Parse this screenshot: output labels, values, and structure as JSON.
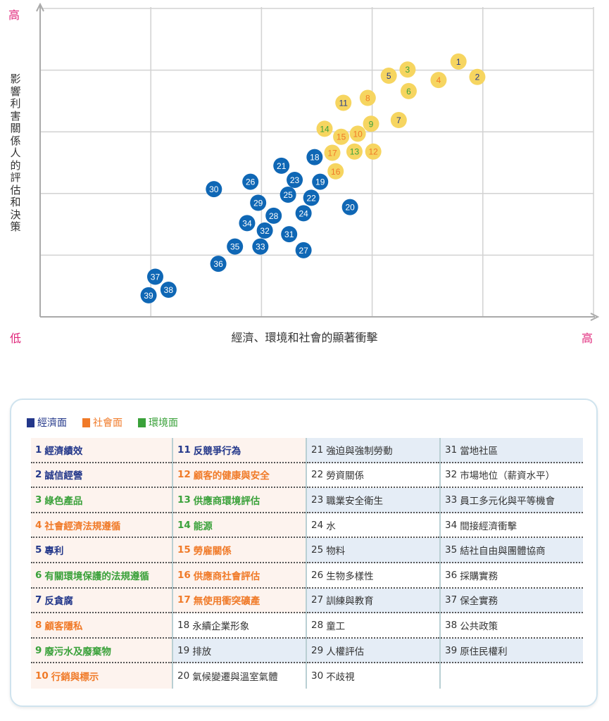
{
  "chart_data": {
    "type": "scatter",
    "title": "",
    "xlabel": "經濟、環境和社會的顯著衝擊",
    "ylabel": "影響利害關係人的評估和決策",
    "axis_ends": {
      "y_high": "高",
      "x_low": "低",
      "x_high": "高"
    },
    "xlim": [
      0,
      5
    ],
    "ylim": [
      0,
      5
    ],
    "grid": true,
    "categories": {
      "economic": {
        "label": "經濟面",
        "color": "#23378a"
      },
      "social": {
        "label": "社會面",
        "color": "#f07a28"
      },
      "environmental": {
        "label": "環境面",
        "color": "#3aa13a"
      }
    },
    "colors": {
      "high_marker": "#f6d560",
      "low_marker": "#0f67b5",
      "low_text": "#ffffff",
      "other_text": "#333333"
    },
    "points": [
      {
        "id": 1,
        "label": "經濟績效",
        "cat": "economic",
        "tier": "high",
        "x": 3.78,
        "y": 4.14
      },
      {
        "id": 2,
        "label": "誠信經營",
        "cat": "economic",
        "tier": "high",
        "x": 3.95,
        "y": 3.89
      },
      {
        "id": 3,
        "label": "綠色產品",
        "cat": "environmental",
        "tier": "high",
        "x": 3.32,
        "y": 4.01
      },
      {
        "id": 4,
        "label": "社會經濟法規遵循",
        "cat": "social",
        "tier": "high",
        "x": 3.6,
        "y": 3.84
      },
      {
        "id": 5,
        "label": "專利",
        "cat": "economic",
        "tier": "high",
        "x": 3.15,
        "y": 3.91
      },
      {
        "id": 6,
        "label": "有關環境保護的法規遵循",
        "cat": "environmental",
        "tier": "high",
        "x": 3.33,
        "y": 3.66
      },
      {
        "id": 7,
        "label": "反貪腐",
        "cat": "economic",
        "tier": "high",
        "x": 3.24,
        "y": 3.19
      },
      {
        "id": 8,
        "label": "顧客隱私",
        "cat": "social",
        "tier": "high",
        "x": 2.96,
        "y": 3.55
      },
      {
        "id": 9,
        "label": "廢污水及廢棄物",
        "cat": "environmental",
        "tier": "high",
        "x": 2.99,
        "y": 3.13
      },
      {
        "id": 10,
        "label": "行銷與標示",
        "cat": "social",
        "tier": "high",
        "x": 2.87,
        "y": 2.97
      },
      {
        "id": 11,
        "label": "反競爭行為",
        "cat": "economic",
        "tier": "high",
        "x": 2.74,
        "y": 3.47
      },
      {
        "id": 12,
        "label": "顧客的健康與安全",
        "cat": "social",
        "tier": "high",
        "x": 3.01,
        "y": 2.68
      },
      {
        "id": 13,
        "label": "供應商環境評估",
        "cat": "environmental",
        "tier": "high",
        "x": 2.84,
        "y": 2.68
      },
      {
        "id": 14,
        "label": "能源",
        "cat": "environmental",
        "tier": "high",
        "x": 2.57,
        "y": 3.05
      },
      {
        "id": 15,
        "label": "勞雇關係",
        "cat": "social",
        "tier": "high",
        "x": 2.72,
        "y": 2.92
      },
      {
        "id": 16,
        "label": "供應商社會評估",
        "cat": "social",
        "tier": "high",
        "x": 2.67,
        "y": 2.36
      },
      {
        "id": 17,
        "label": "無使用衝突礦產",
        "cat": "social",
        "tier": "high",
        "x": 2.64,
        "y": 2.66
      },
      {
        "id": 18,
        "label": "永續企業形象",
        "cat": "other",
        "tier": "low",
        "x": 2.48,
        "y": 2.59
      },
      {
        "id": 19,
        "label": "排放",
        "cat": "other",
        "tier": "low",
        "x": 2.53,
        "y": 2.19
      },
      {
        "id": 20,
        "label": "氣候變遷與溫室氣體",
        "cat": "other",
        "tier": "low",
        "x": 2.8,
        "y": 1.78
      },
      {
        "id": 21,
        "label": "強迫與強制勞動",
        "cat": "other",
        "tier": "low",
        "x": 2.18,
        "y": 2.45
      },
      {
        "id": 22,
        "label": "勞資關係",
        "cat": "other",
        "tier": "low",
        "x": 2.45,
        "y": 1.93
      },
      {
        "id": 23,
        "label": "職業安全衛生",
        "cat": "other",
        "tier": "low",
        "x": 2.3,
        "y": 2.22
      },
      {
        "id": 24,
        "label": "水",
        "cat": "other",
        "tier": "low",
        "x": 2.38,
        "y": 1.68
      },
      {
        "id": 25,
        "label": "物料",
        "cat": "other",
        "tier": "low",
        "x": 2.24,
        "y": 1.98
      },
      {
        "id": 26,
        "label": "生物多樣性",
        "cat": "other",
        "tier": "low",
        "x": 1.9,
        "y": 2.19
      },
      {
        "id": 27,
        "label": "訓練與教育",
        "cat": "other",
        "tier": "low",
        "x": 2.38,
        "y": 1.08
      },
      {
        "id": 28,
        "label": "童工",
        "cat": "other",
        "tier": "low",
        "x": 2.11,
        "y": 1.64
      },
      {
        "id": 29,
        "label": "人權評估",
        "cat": "other",
        "tier": "low",
        "x": 1.97,
        "y": 1.85
      },
      {
        "id": 30,
        "label": "不歧視",
        "cat": "other",
        "tier": "low",
        "x": 1.57,
        "y": 2.07
      },
      {
        "id": 31,
        "label": "當地社區",
        "cat": "other",
        "tier": "low",
        "x": 2.25,
        "y": 1.34
      },
      {
        "id": 32,
        "label": "市場地位（薪資水平）",
        "cat": "other",
        "tier": "low",
        "x": 2.03,
        "y": 1.4
      },
      {
        "id": 33,
        "label": "員工多元化與平等機會",
        "cat": "other",
        "tier": "low",
        "x": 1.99,
        "y": 1.14
      },
      {
        "id": 34,
        "label": "間接經濟衝擊",
        "cat": "other",
        "tier": "low",
        "x": 1.87,
        "y": 1.52
      },
      {
        "id": 35,
        "label": "結社自由與團體協商",
        "cat": "other",
        "tier": "low",
        "x": 1.76,
        "y": 1.14
      },
      {
        "id": 36,
        "label": "採購實務",
        "cat": "other",
        "tier": "low",
        "x": 1.61,
        "y": 0.86
      },
      {
        "id": 37,
        "label": "保全實務",
        "cat": "other",
        "tier": "low",
        "x": 1.04,
        "y": 0.65
      },
      {
        "id": 38,
        "label": "公共政策",
        "cat": "other",
        "tier": "low",
        "x": 1.16,
        "y": 0.44
      },
      {
        "id": 39,
        "label": "原住民權利",
        "cat": "other",
        "tier": "low",
        "x": 0.98,
        "y": 0.35
      }
    ]
  }
}
